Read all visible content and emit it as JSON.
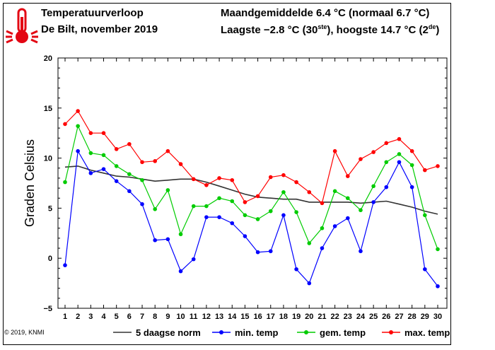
{
  "header": {
    "title": "Temperatuurverloop",
    "subtitle": "De Bilt, november 2019",
    "monthly_avg": "Maandgemiddelde 6.4 °C (normaal 6.7 °C)",
    "extremes": "Laagste −2.8 °C (30",
    "extremes_sup1": "ste",
    "extremes_mid": "), hoogste 14.7 °C (2",
    "extremes_sup2": "de",
    "extremes_end": ")"
  },
  "copyright": "© 2019, KNMI",
  "chart_data": {
    "type": "line",
    "ylabel": "Graden Celsius",
    "ylim": [
      -5,
      20
    ],
    "yticks": [
      -5,
      0,
      5,
      10,
      15,
      20
    ],
    "x": [
      1,
      2,
      3,
      4,
      5,
      6,
      7,
      8,
      9,
      10,
      11,
      12,
      13,
      14,
      15,
      16,
      17,
      18,
      19,
      20,
      21,
      22,
      23,
      24,
      25,
      26,
      27,
      28,
      29,
      30
    ],
    "grid": false,
    "legend_position": "bottom",
    "series": [
      {
        "name": "5 daagse norm",
        "color": "#333333",
        "marker": false,
        "values": [
          9.1,
          9.2,
          8.8,
          8.5,
          8.2,
          8.1,
          7.9,
          7.7,
          7.8,
          7.9,
          7.9,
          7.6,
          7.2,
          6.8,
          6.4,
          6.1,
          6.0,
          5.9,
          5.9,
          5.6,
          5.6,
          5.6,
          5.6,
          5.5,
          5.6,
          5.7,
          5.4,
          5.1,
          4.7,
          4.4
        ]
      },
      {
        "name": "min. temp",
        "color": "#0000ff",
        "marker": true,
        "values": [
          -0.7,
          10.7,
          8.5,
          8.9,
          7.7,
          6.7,
          5.4,
          1.8,
          1.9,
          -1.3,
          -0.1,
          4.1,
          4.1,
          3.5,
          2.2,
          0.6,
          0.7,
          4.3,
          -1.1,
          -2.5,
          1.0,
          3.2,
          4.0,
          0.7,
          5.6,
          7.1,
          9.6,
          7.1,
          -1.1,
          -2.8
        ]
      },
      {
        "name": "gem. temp",
        "color": "#00cc00",
        "marker": true,
        "values": [
          7.6,
          13.2,
          10.5,
          10.3,
          9.2,
          8.4,
          7.8,
          4.9,
          6.8,
          2.4,
          5.2,
          5.2,
          6.0,
          5.7,
          4.3,
          3.9,
          4.7,
          6.6,
          4.6,
          1.5,
          3.0,
          6.7,
          6.0,
          4.8,
          7.2,
          9.6,
          10.4,
          9.3,
          4.3,
          0.9
        ]
      },
      {
        "name": "max. temp",
        "color": "#ff0000",
        "marker": true,
        "values": [
          13.4,
          14.7,
          12.5,
          12.5,
          10.9,
          11.4,
          9.6,
          9.7,
          10.7,
          9.4,
          7.9,
          7.3,
          8.0,
          7.8,
          5.6,
          6.2,
          8.1,
          8.3,
          7.6,
          6.6,
          5.5,
          10.7,
          8.2,
          9.9,
          10.6,
          11.5,
          11.9,
          10.7,
          8.8,
          9.2
        ]
      }
    ]
  }
}
